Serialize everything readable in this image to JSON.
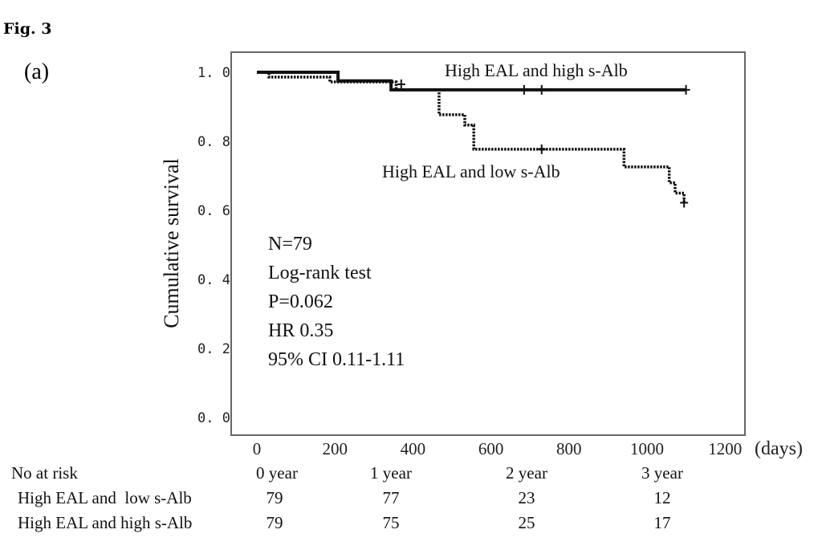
{
  "figure_label": "Fig. 3",
  "panel_label": "(a)",
  "chart_data": {
    "type": "line",
    "subtype": "kaplan-meier",
    "title": "",
    "xlabel": "(days)",
    "ylabel": "Cumulative survival",
    "xlim": [
      0,
      1200
    ],
    "ylim": [
      0,
      1.0
    ],
    "x_ticks": [
      0,
      200,
      400,
      600,
      800,
      1000,
      1200
    ],
    "x_tick_labels": [
      "0",
      "200",
      "400",
      "600",
      "800",
      "1000",
      "1200"
    ],
    "y_ticks": [
      0,
      0.2,
      0.4,
      0.6,
      0.8,
      1.0
    ],
    "y_tick_labels": [
      "0. 0",
      "0. 2",
      "0. 4",
      "0. 6",
      "0. 8",
      "1. 0"
    ],
    "grid": false,
    "series": [
      {
        "name": "High EAL and high s-Alb",
        "style": "solid",
        "steps": [
          [
            0,
            1.0
          ],
          [
            208,
            0.975
          ],
          [
            344,
            0.949
          ],
          [
            1100,
            0.949
          ]
        ],
        "censored": [
          [
            685,
            0.949
          ],
          [
            730,
            0.949
          ],
          [
            1100,
            0.949
          ]
        ]
      },
      {
        "name": "High EAL and low s-Alb",
        "style": "dotted",
        "steps": [
          [
            0,
            1.0
          ],
          [
            31,
            0.986
          ],
          [
            187,
            0.972
          ],
          [
            357,
            0.949
          ],
          [
            467,
            0.877
          ],
          [
            533,
            0.847
          ],
          [
            556,
            0.777
          ],
          [
            941,
            0.726
          ],
          [
            1057,
            0.68
          ],
          [
            1072,
            0.65
          ],
          [
            1095,
            0.622
          ]
        ],
        "censored": [
          [
            370,
            0.965
          ],
          [
            730,
            0.777
          ],
          [
            1095,
            0.622
          ]
        ]
      }
    ],
    "annotations": [
      "N=79",
      "Log-rank test",
      "P=0.062",
      "HR 0.35",
      "95% CI 0.11-1.11"
    ]
  },
  "risk_table": {
    "header": "No at risk",
    "columns": [
      "0 year",
      "1 year",
      "2 year",
      "3 year"
    ],
    "rows": [
      {
        "label": "High EAL and  low s-Alb",
        "values": [
          "79",
          "77",
          "23",
          "12"
        ]
      },
      {
        "label": "High EAL and high s-Alb",
        "values": [
          "79",
          "75",
          "25",
          "17"
        ]
      }
    ]
  }
}
